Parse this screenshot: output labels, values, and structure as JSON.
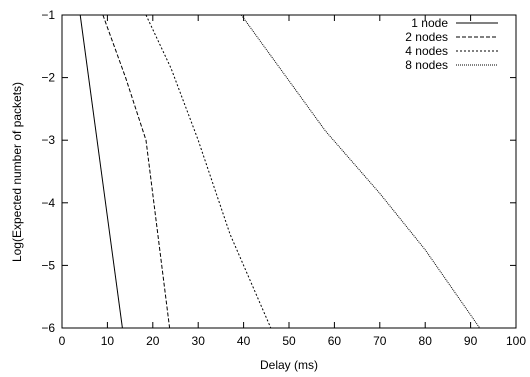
{
  "chart_data": {
    "type": "line",
    "xlabel": "Delay (ms)",
    "ylabel": "Log(Expected number of packets)",
    "xlim": [
      0,
      100
    ],
    "ylim": [
      -6,
      -1
    ],
    "x_ticks": [
      "0",
      "10",
      "20",
      "30",
      "40",
      "50",
      "60",
      "70",
      "80",
      "90",
      "100"
    ],
    "y_ticks": [
      "-1",
      "-2",
      "-3",
      "-4",
      "-5",
      "-6"
    ],
    "legend_position": "top-right",
    "series": [
      {
        "name": "1 node",
        "dash": "solid",
        "x": [
          4.0,
          13.3
        ],
        "y": [
          -1,
          -6
        ]
      },
      {
        "name": "2 nodes",
        "dash": "dashed",
        "x": [
          9.0,
          14.0,
          18.5,
          23.7
        ],
        "y": [
          -1,
          -2,
          -3,
          -6
        ]
      },
      {
        "name": "4 nodes",
        "dash": "dotted",
        "x": [
          18.5,
          24.0,
          30.0,
          37.0,
          46.0
        ],
        "y": [
          -1,
          -1.85,
          -3,
          -4.5,
          -6
        ]
      },
      {
        "name": "8 nodes",
        "dash": "dense-dotted",
        "x": [
          39.5,
          48.0,
          58.0,
          70.0,
          80.0,
          92.0
        ],
        "y": [
          -1,
          -1.85,
          -2.85,
          -3.85,
          -4.75,
          -6
        ]
      }
    ]
  }
}
